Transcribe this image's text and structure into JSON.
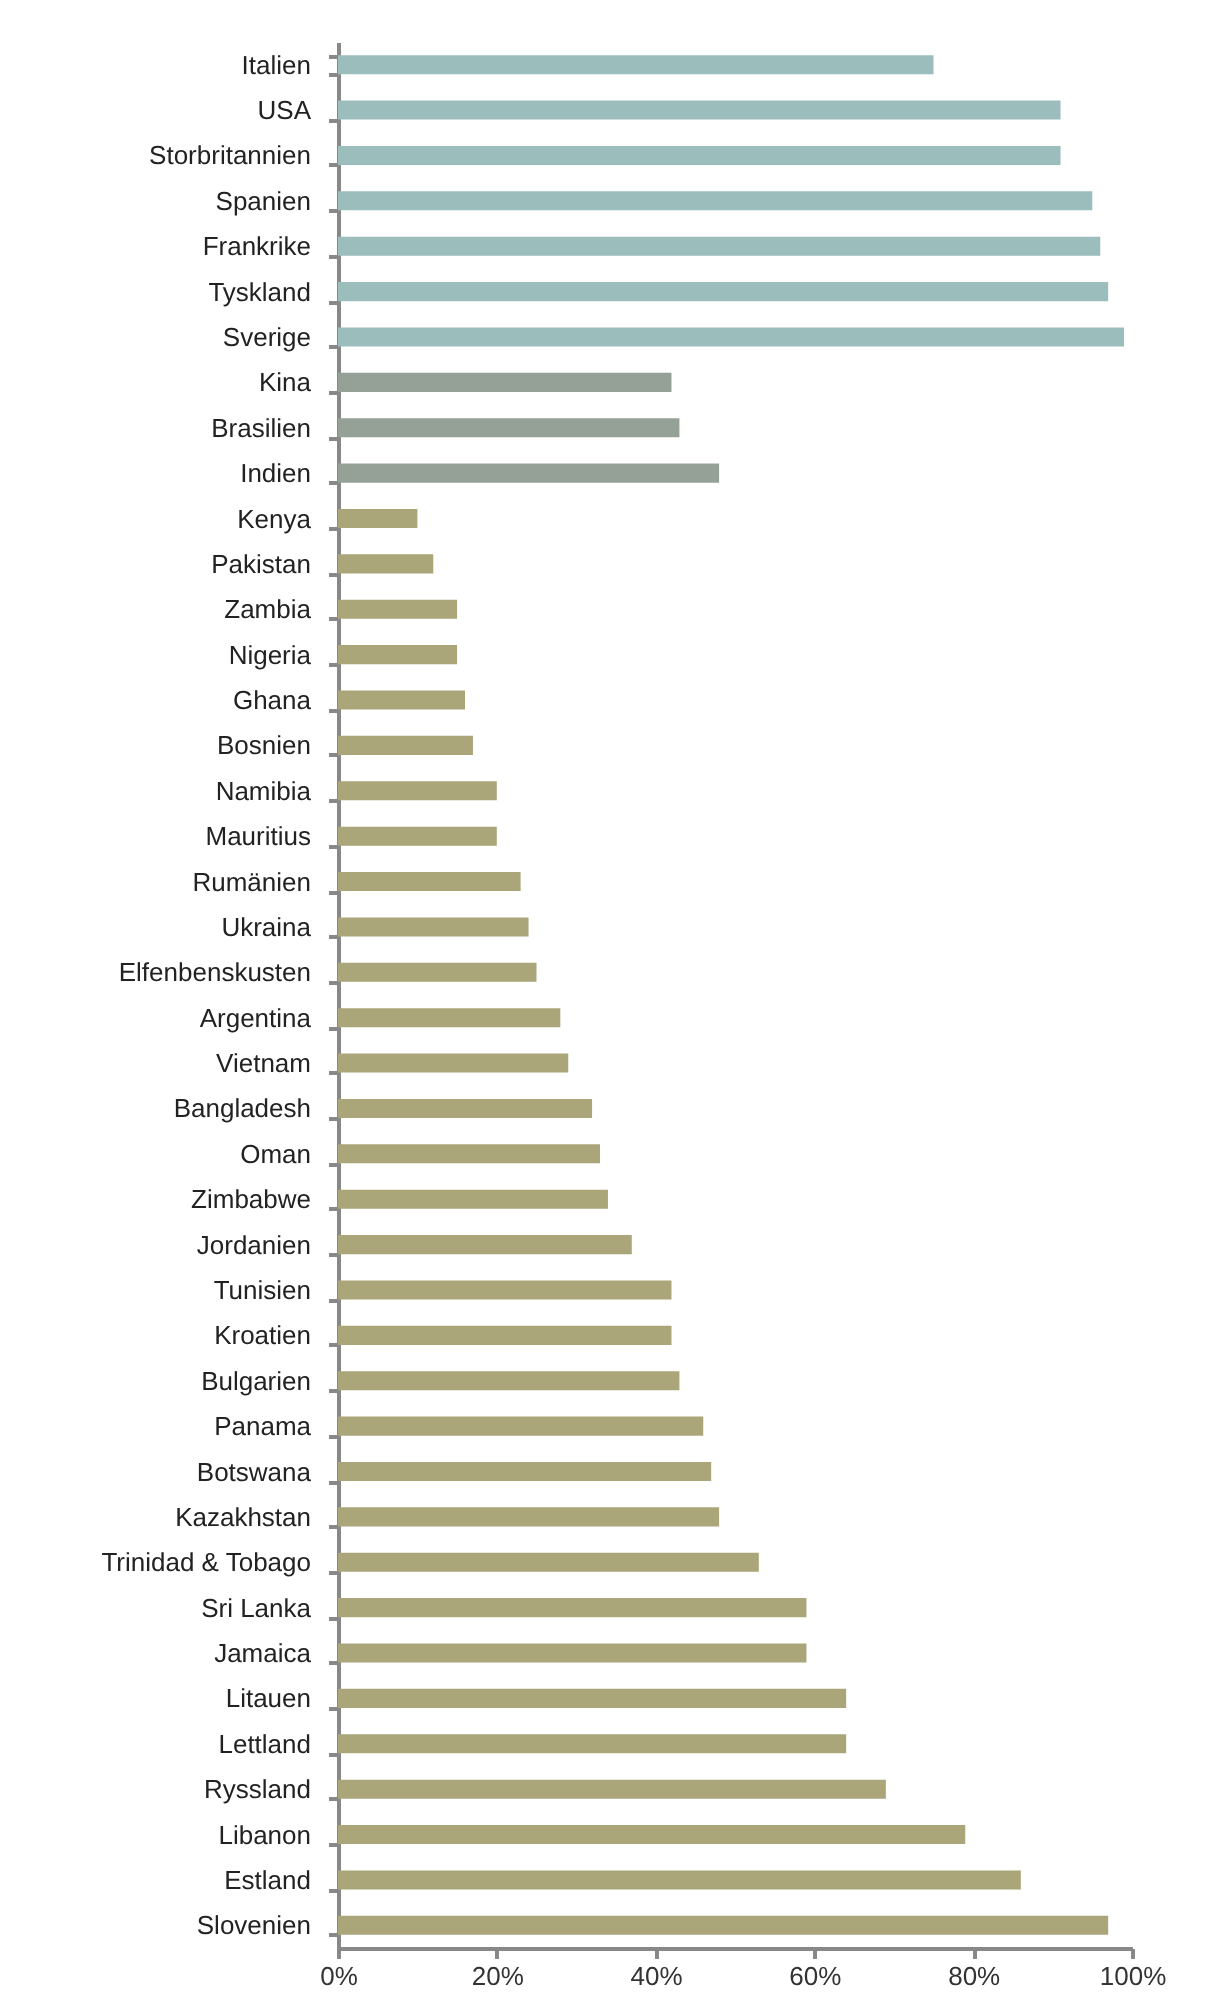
{
  "chart_data": {
    "type": "bar",
    "orientation": "horizontal",
    "categories": [
      "Italien",
      "USA",
      "Storbritannien",
      "Spanien",
      "Frankrike",
      "Tyskland",
      "Sverige",
      "Kina",
      "Brasilien",
      "Indien",
      "Kenya",
      "Pakistan",
      "Zambia",
      "Nigeria",
      "Ghana",
      "Bosnien",
      "Namibia",
      "Mauritius",
      "Rumänien",
      "Ukraina",
      "Elfenbenskusten",
      "Argentina",
      "Vietnam",
      "Bangladesh",
      "Oman",
      "Zimbabwe",
      "Jordanien",
      "Tunisien",
      "Kroatien",
      "Bulgarien",
      "Panama",
      "Botswana",
      "Kazakhstan",
      "Trinidad & Tobago",
      "Sri Lanka",
      "Jamaica",
      "Litauen",
      "Lettland",
      "Ryssland",
      "Libanon",
      "Estland",
      "Slovenien"
    ],
    "values": [
      75,
      91,
      91,
      95,
      96,
      97,
      99,
      42,
      43,
      48,
      10,
      12,
      15,
      15,
      16,
      17,
      20,
      20,
      23,
      24,
      25,
      28,
      29,
      32,
      33,
      34,
      37,
      42,
      42,
      43,
      46,
      47,
      48,
      53,
      59,
      59,
      64,
      64,
      69,
      79,
      86,
      97
    ],
    "colors": [
      "#9bbdbb",
      "#9bbdbb",
      "#9bbdbb",
      "#9bbdbb",
      "#9bbdbb",
      "#9bbdbb",
      "#9bbdbb",
      "#95a197",
      "#95a197",
      "#95a197",
      "#aaa67a",
      "#aaa67a",
      "#aaa67a",
      "#aaa67a",
      "#aaa67a",
      "#aaa67a",
      "#aaa67a",
      "#aaa67a",
      "#aaa67a",
      "#aaa67a",
      "#aaa67a",
      "#aaa67a",
      "#aaa67a",
      "#aaa67a",
      "#aaa67a",
      "#aaa67a",
      "#aaa67a",
      "#aaa67a",
      "#aaa67a",
      "#aaa67a",
      "#aaa67a",
      "#aaa67a",
      "#aaa67a",
      "#aaa67a",
      "#aaa67a",
      "#aaa67a",
      "#aaa67a",
      "#aaa67a",
      "#aaa67a",
      "#aaa67a",
      "#aaa67a",
      "#aaa67a"
    ],
    "xlim": [
      0,
      100
    ],
    "xticks": [
      {
        "value": 0,
        "label": "0%"
      },
      {
        "value": 20,
        "label": "20%"
      },
      {
        "value": 40,
        "label": "40%"
      },
      {
        "value": 60,
        "label": "60%"
      },
      {
        "value": 80,
        "label": "80%"
      },
      {
        "value": 100,
        "label": "100%"
      }
    ],
    "grid": false
  }
}
